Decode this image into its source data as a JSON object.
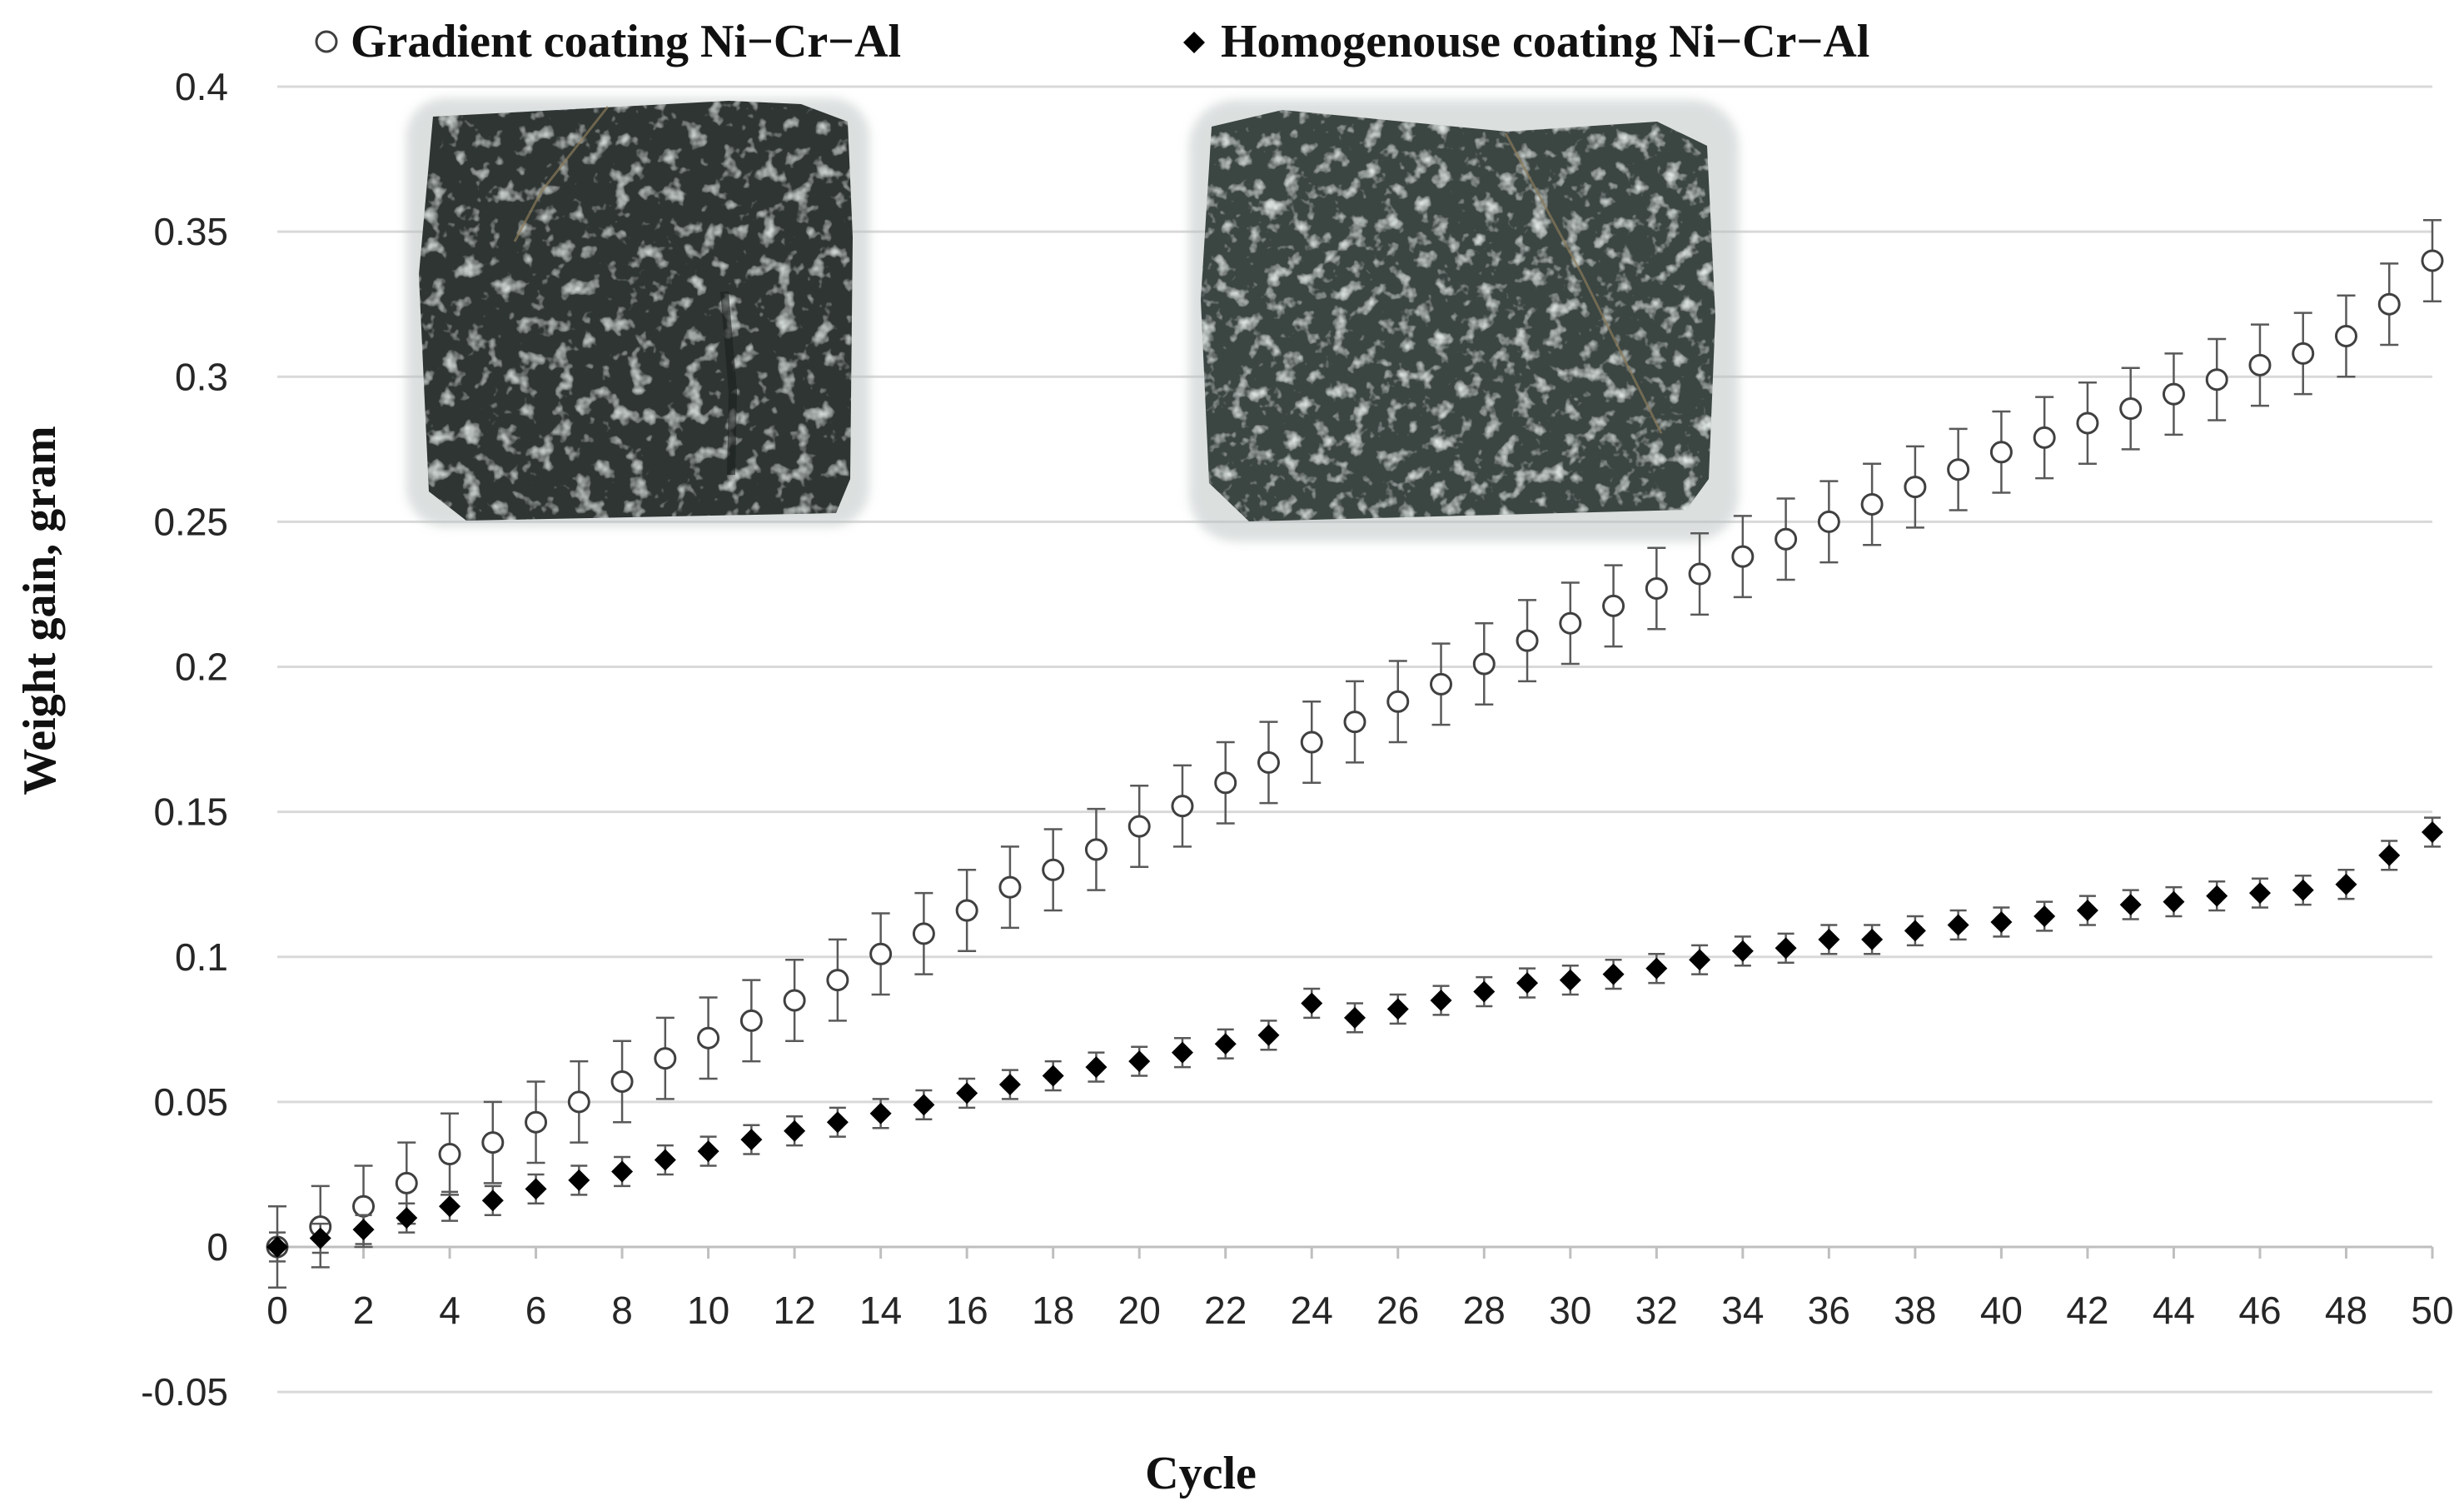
{
  "chart_data": {
    "type": "scatter",
    "title": "",
    "xlabel": "Cycle",
    "ylabel": "Weight gain, gram",
    "xlim": [
      0,
      50
    ],
    "ylim": [
      -0.05,
      0.4
    ],
    "x_ticks": [
      "0",
      "2",
      "4",
      "6",
      "8",
      "10",
      "12",
      "14",
      "16",
      "18",
      "20",
      "22",
      "24",
      "26",
      "28",
      "30",
      "32",
      "34",
      "36",
      "38",
      "40",
      "42",
      "44",
      "46",
      "48",
      "50"
    ],
    "y_ticks": [
      "-0.05",
      "0",
      "0.05",
      "0.1",
      "0.15",
      "0.2",
      "0.25",
      "0.3",
      "0.35",
      "0.4"
    ],
    "grid": "horizontal",
    "legend_position": "top",
    "series": [
      {
        "name": "Gradient coating Ni−Cr−Al",
        "marker": "open-circle",
        "color": "#404040",
        "x": [
          0,
          1,
          2,
          3,
          4,
          5,
          6,
          7,
          8,
          9,
          10,
          11,
          12,
          13,
          14,
          15,
          16,
          17,
          18,
          19,
          20,
          21,
          22,
          23,
          24,
          25,
          26,
          27,
          28,
          29,
          30,
          31,
          32,
          33,
          34,
          35,
          36,
          37,
          38,
          39,
          40,
          41,
          42,
          43,
          44,
          45,
          46,
          47,
          48,
          49,
          50
        ],
        "values": [
          0.0,
          0.007,
          0.014,
          0.022,
          0.032,
          0.036,
          0.043,
          0.05,
          0.057,
          0.065,
          0.072,
          0.078,
          0.085,
          0.092,
          0.101,
          0.108,
          0.116,
          0.124,
          0.13,
          0.137,
          0.145,
          0.152,
          0.16,
          0.167,
          0.174,
          0.181,
          0.188,
          0.194,
          0.201,
          0.209,
          0.215,
          0.221,
          0.227,
          0.232,
          0.238,
          0.244,
          0.25,
          0.256,
          0.262,
          0.268,
          0.274,
          0.279,
          0.284,
          0.289,
          0.294,
          0.299,
          0.304,
          0.308,
          0.314,
          0.325,
          0.34
        ],
        "error": 0.014
      },
      {
        "name": "Homogenouse coating Ni−Cr−Al",
        "marker": "filled-diamond",
        "color": "#000000",
        "x": [
          0,
          1,
          2,
          3,
          4,
          5,
          6,
          7,
          8,
          9,
          10,
          11,
          12,
          13,
          14,
          15,
          16,
          17,
          18,
          19,
          20,
          21,
          22,
          23,
          24,
          25,
          26,
          27,
          28,
          29,
          30,
          31,
          32,
          33,
          34,
          35,
          36,
          37,
          38,
          39,
          40,
          41,
          42,
          43,
          44,
          45,
          46,
          47,
          48,
          49,
          50
        ],
        "values": [
          0.0,
          0.003,
          0.006,
          0.01,
          0.014,
          0.016,
          0.02,
          0.023,
          0.026,
          0.03,
          0.033,
          0.037,
          0.04,
          0.043,
          0.046,
          0.049,
          0.053,
          0.056,
          0.059,
          0.062,
          0.064,
          0.067,
          0.07,
          0.073,
          0.084,
          0.079,
          0.082,
          0.085,
          0.088,
          0.091,
          0.092,
          0.094,
          0.096,
          0.099,
          0.102,
          0.103,
          0.106,
          0.106,
          0.109,
          0.111,
          0.112,
          0.114,
          0.116,
          0.118,
          0.119,
          0.121,
          0.122,
          0.123,
          0.125,
          0.135,
          0.143
        ],
        "error": 0.005
      }
    ],
    "insets": [
      {
        "label": "gradient-coating-sample-photo"
      },
      {
        "label": "homogeneous-coating-sample-photo"
      }
    ]
  },
  "colors": {
    "grid": "#d9d9d9",
    "axis": "#bfbfbf",
    "error_bar": "#595959",
    "sample_dark": "#2a3130",
    "sample_mid": "#3d4644"
  }
}
